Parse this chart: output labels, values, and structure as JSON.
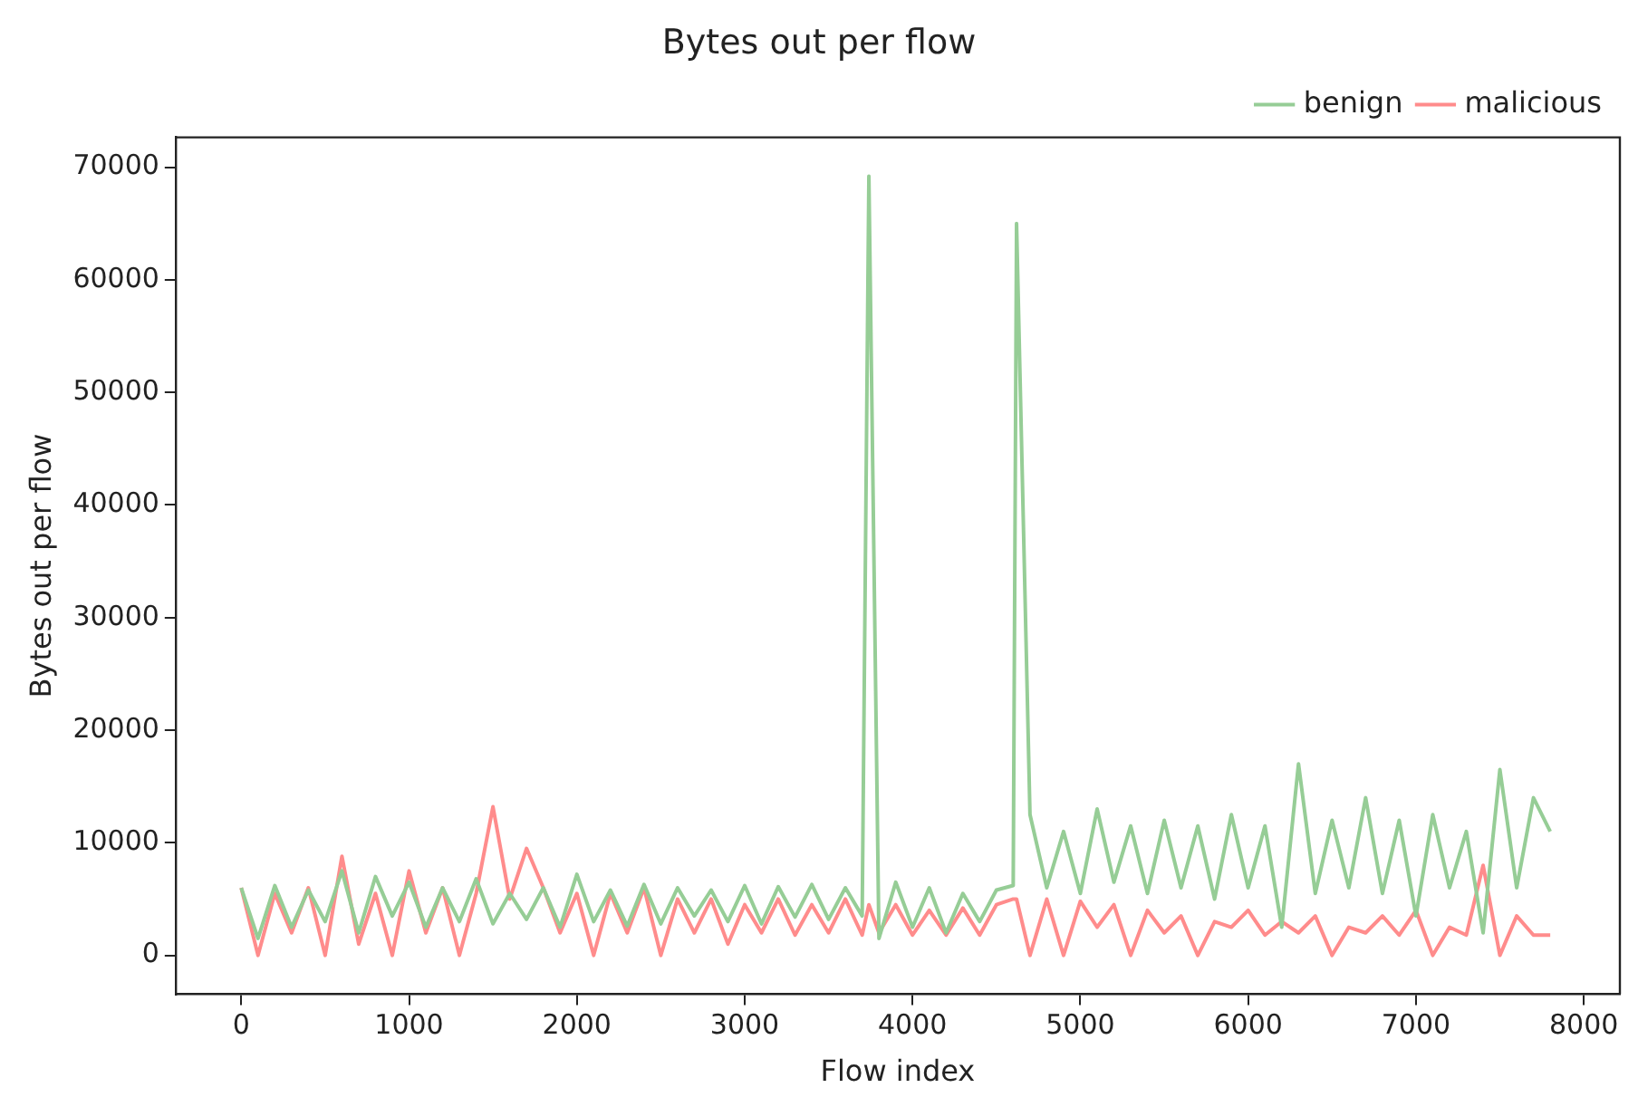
{
  "chart_data": {
    "type": "line",
    "title": "Bytes out per flow",
    "xlabel": "Flow index",
    "ylabel": "Bytes out per flow",
    "x": [
      0,
      100,
      200,
      300,
      400,
      500,
      600,
      700,
      800,
      900,
      1000,
      1100,
      1200,
      1300,
      1400,
      1500,
      1600,
      1700,
      1800,
      1900,
      2000,
      2100,
      2200,
      2300,
      2400,
      2500,
      2600,
      2700,
      2800,
      2900,
      3000,
      3100,
      3200,
      3300,
      3400,
      3500,
      3600,
      3700,
      3740,
      3800,
      3900,
      4000,
      4100,
      4200,
      4300,
      4400,
      4500,
      4600,
      4620,
      4700,
      4800,
      4900,
      5000,
      5100,
      5200,
      5300,
      5400,
      5500,
      5600,
      5700,
      5800,
      5900,
      6000,
      6100,
      6200,
      6300,
      6400,
      6500,
      6600,
      6700,
      6800,
      6900,
      7000,
      7100,
      7200,
      7300,
      7400,
      7500,
      7600,
      7700,
      7800
    ],
    "series": [
      {
        "name": "benign",
        "color": "#96cd96",
        "values": [
          6000,
          1500,
          6200,
          2500,
          5800,
          3000,
          7500,
          2000,
          7000,
          3500,
          6500,
          2500,
          6000,
          3000,
          6800,
          2800,
          5500,
          3200,
          6000,
          2500,
          7200,
          3000,
          5800,
          2600,
          6300,
          2800,
          6000,
          3500,
          5800,
          3000,
          6200,
          2800,
          6100,
          3400,
          6300,
          3200,
          6000,
          3500,
          69200,
          1500,
          6500,
          2500,
          6000,
          2000,
          5500,
          3000,
          5800,
          6200,
          65000,
          12500,
          6000,
          11000,
          5500,
          13000,
          6500,
          11500,
          5500,
          12000,
          6000,
          11500,
          5000,
          12500,
          6000,
          11500,
          2500,
          17000,
          5500,
          12000,
          6000,
          14000,
          5500,
          12000,
          3500,
          12500,
          6000,
          11000,
          2000,
          16500,
          6000,
          14000,
          11000
        ]
      },
      {
        "name": "malicious",
        "color": "#ff8c8c",
        "values": [
          6000,
          0,
          5500,
          2000,
          6000,
          0,
          8800,
          1000,
          5500,
          0,
          7500,
          2000,
          6000,
          0,
          5500,
          13200,
          5000,
          9500,
          6000,
          2000,
          5500,
          0,
          5500,
          2000,
          6000,
          0,
          5000,
          2000,
          5000,
          1000,
          4500,
          2000,
          5000,
          1800,
          4500,
          2000,
          5000,
          1800,
          4500,
          2000,
          4500,
          1800,
          4000,
          1800,
          4200,
          1800,
          4500,
          5000,
          5000,
          0,
          5000,
          0,
          4800,
          2500,
          4500,
          0,
          4000,
          2000,
          3500,
          0,
          3000,
          2500,
          4000,
          1800,
          3000,
          2000,
          3500,
          0,
          2500,
          2000,
          3500,
          1800,
          4000,
          0,
          2500,
          1800,
          8000,
          0,
          3500,
          1800,
          1800
        ]
      }
    ],
    "xlim": [
      -391,
      8215
    ],
    "ylim": [
      -3460,
      72660
    ],
    "xticks": [
      0,
      1000,
      2000,
      3000,
      4000,
      5000,
      6000,
      7000,
      8000
    ],
    "yticks": [
      0,
      10000,
      20000,
      30000,
      40000,
      50000,
      60000,
      70000
    ],
    "grid": false,
    "legend": "top right",
    "marker": "none",
    "line_style": "solid"
  }
}
